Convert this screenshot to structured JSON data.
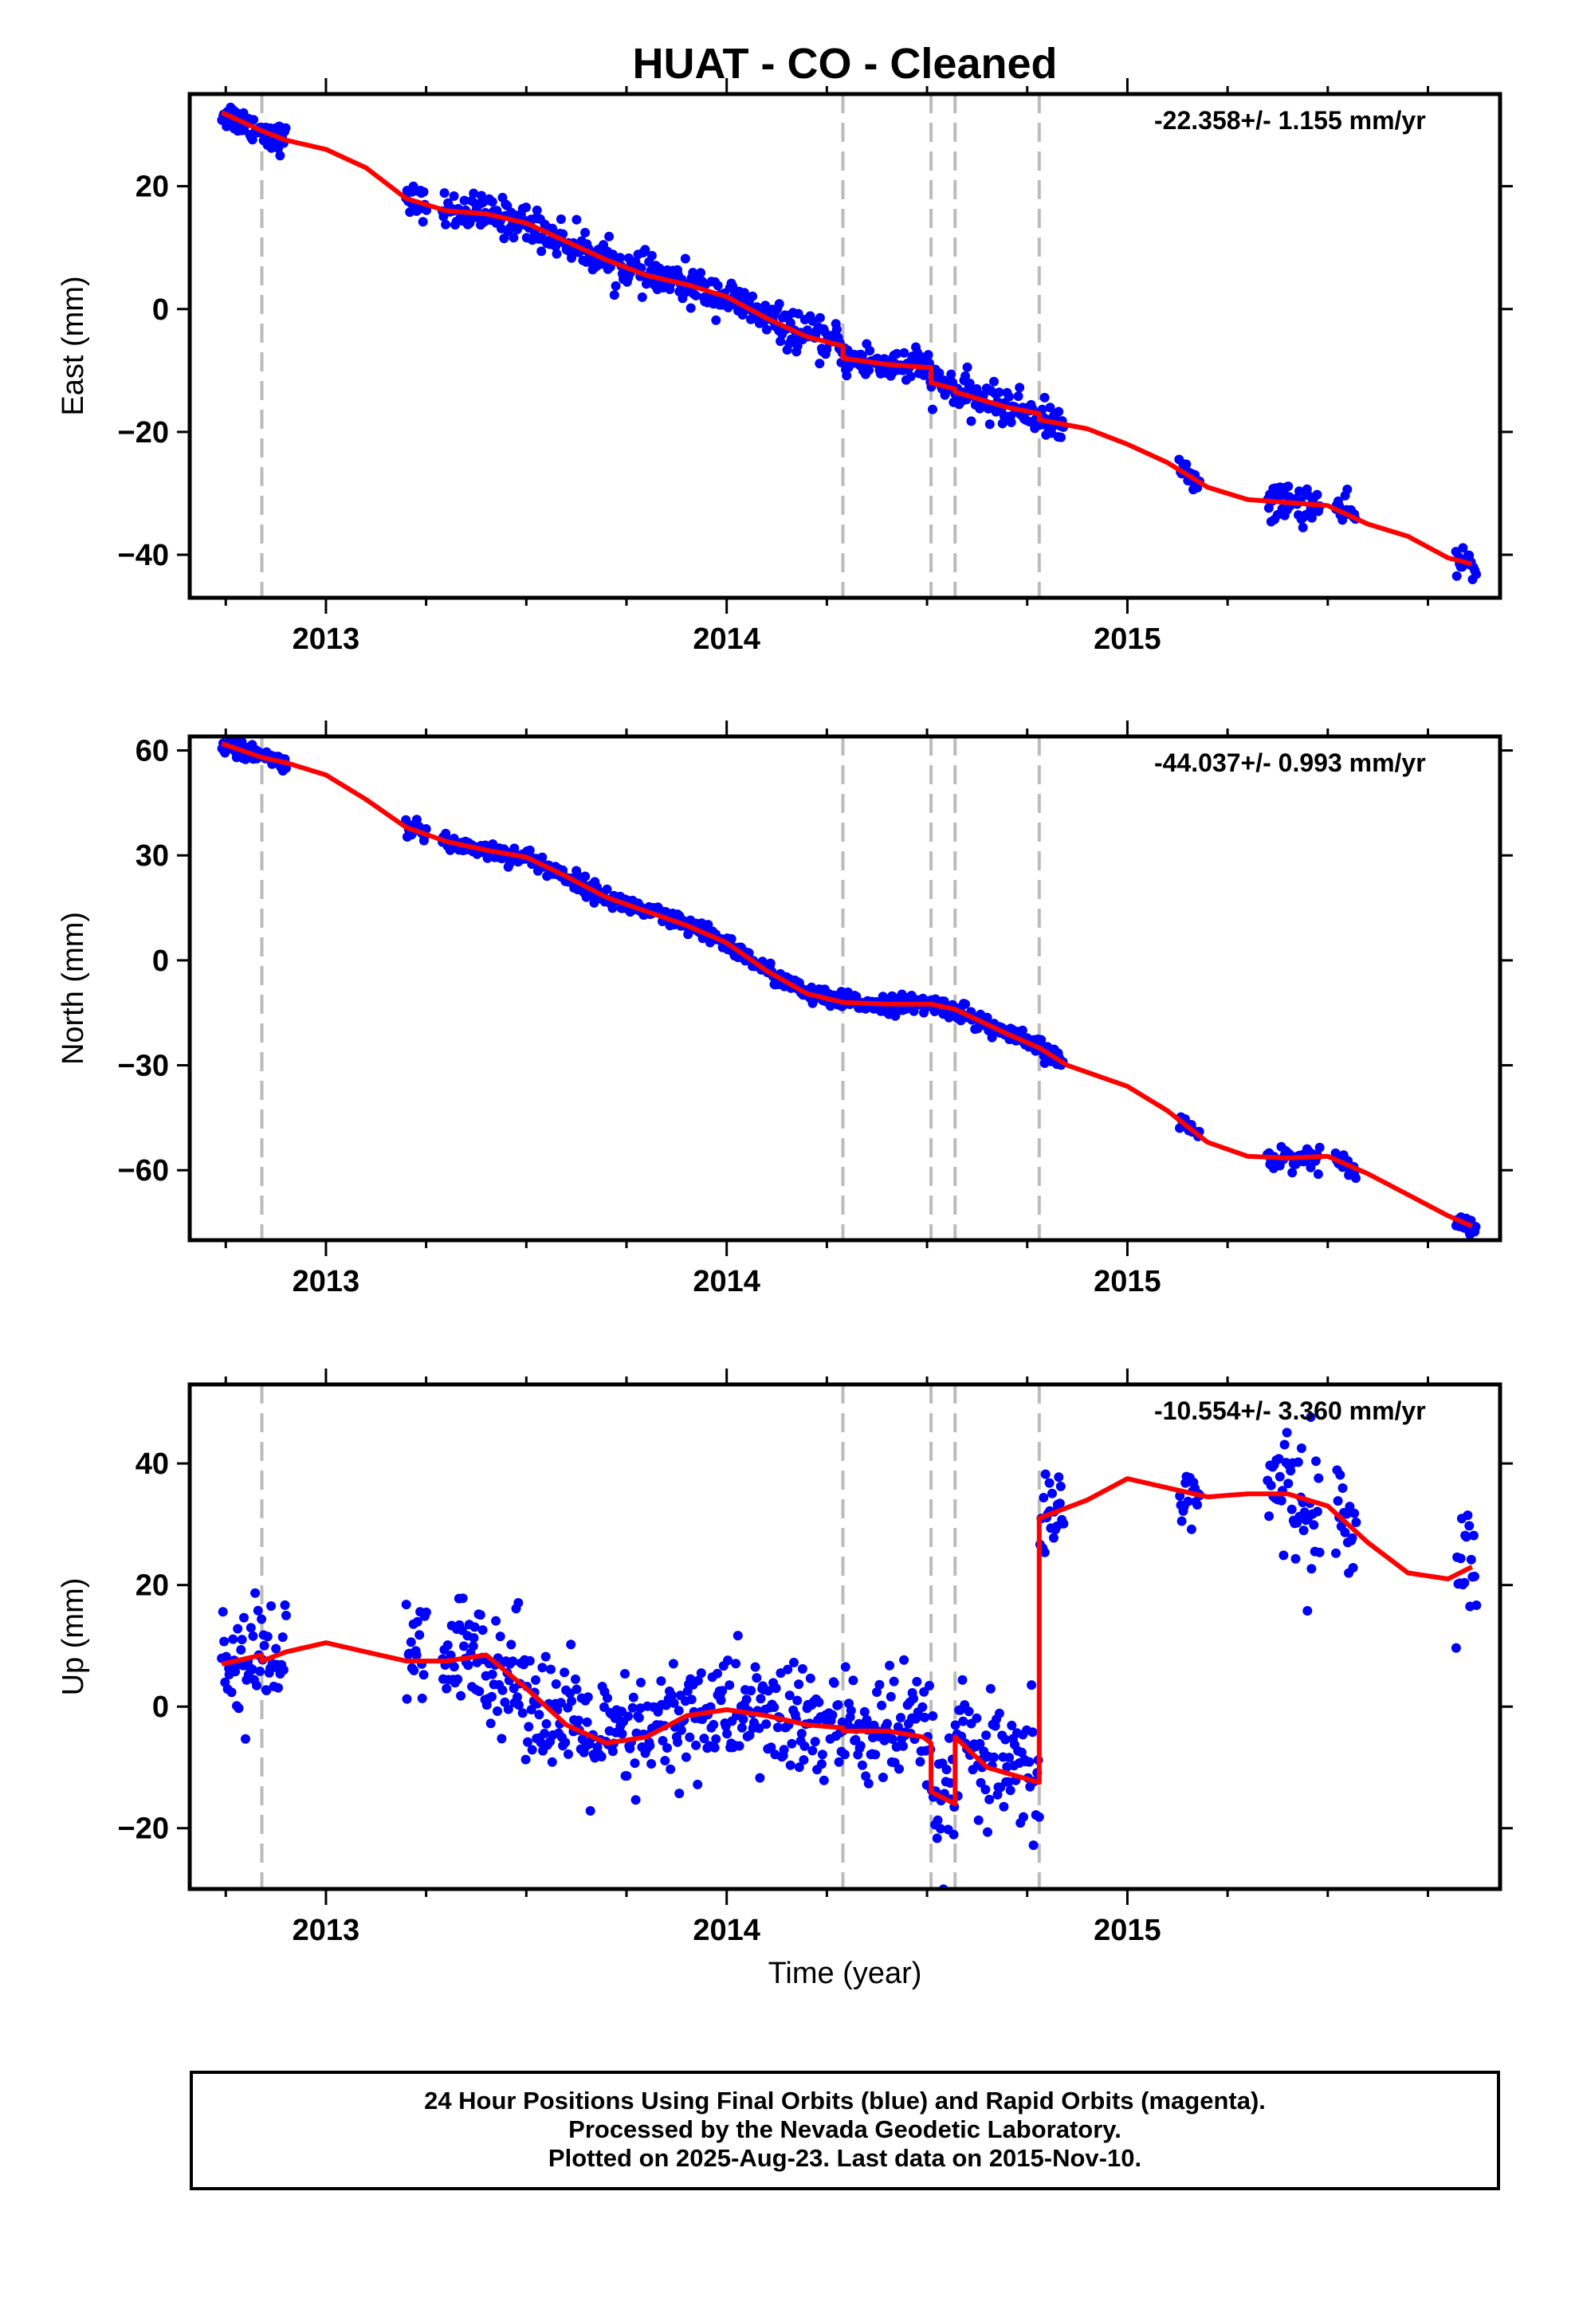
{
  "title": "HUAT  - CO - Cleaned",
  "xlabel": "Time (year)",
  "footer": [
    "24 Hour Positions Using Final Orbits (blue) and Rapid Orbits (magenta).",
    "Processed by the Nevada Geodetic Laboratory.",
    "Plotted on 2025-Aug-23. Last data on 2015-Nov-10."
  ],
  "colors": {
    "final_orbits": "#0000ff",
    "model": "#ff0000",
    "event_lines": "#bbbbbb",
    "axes": "#000000"
  },
  "chart_data": [
    {
      "type": "scatter",
      "ylabel": "East (mm)",
      "rate_label": "-22.358+/- 1.155 mm/yr",
      "xlim": [
        2012.66,
        2015.93
      ],
      "ylim": [
        -47,
        35
      ],
      "yticks": [
        20,
        0,
        -20,
        -40
      ],
      "xticks": [
        2013,
        2014,
        2015
      ],
      "event_lines": [
        2012.84,
        2014.29,
        2014.51,
        2014.57,
        2014.78
      ],
      "data_clusters": [
        {
          "x_start": 2012.74,
          "x_end": 2012.9,
          "noise": 1.2
        },
        {
          "x_start": 2013.2,
          "x_end": 2013.25,
          "noise": 1.3
        },
        {
          "x_start": 2013.29,
          "x_end": 2014.84,
          "noise": 1.5
        },
        {
          "x_start": 2015.13,
          "x_end": 2015.18,
          "noise": 1.0
        },
        {
          "x_start": 2015.35,
          "x_end": 2015.48,
          "noise": 1.6
        },
        {
          "x_start": 2015.52,
          "x_end": 2015.57,
          "noise": 1.3
        },
        {
          "x_start": 2015.82,
          "x_end": 2015.87,
          "noise": 1.5
        }
      ],
      "series": [
        {
          "points": [
            [
              2012.74,
              32
            ],
            [
              2012.84,
              29
            ],
            [
              2012.9,
              27.5
            ],
            [
              2013.0,
              26
            ],
            [
              2013.1,
              23
            ],
            [
              2013.2,
              18
            ],
            [
              2013.3,
              16
            ],
            [
              2013.4,
              15.5
            ],
            [
              2013.5,
              14
            ],
            [
              2013.6,
              11
            ],
            [
              2013.7,
              8
            ],
            [
              2013.8,
              5.5
            ],
            [
              2013.9,
              4
            ],
            [
              2014.0,
              2
            ],
            [
              2014.1,
              -1.5
            ],
            [
              2014.2,
              -4.5
            ],
            [
              2014.29,
              -6
            ],
            [
              2014.29,
              -8
            ],
            [
              2014.4,
              -9
            ],
            [
              2014.5,
              -9.5
            ],
            [
              2014.51,
              -9.5
            ],
            [
              2014.51,
              -12
            ],
            [
              2014.57,
              -13
            ],
            [
              2014.57,
              -13.5
            ],
            [
              2014.7,
              -16
            ],
            [
              2014.78,
              -17
            ],
            [
              2014.78,
              -18
            ],
            [
              2014.9,
              -19.5
            ],
            [
              2015.0,
              -22
            ],
            [
              2015.1,
              -25
            ],
            [
              2015.2,
              -29
            ],
            [
              2015.3,
              -31
            ],
            [
              2015.4,
              -31.5
            ],
            [
              2015.5,
              -32
            ],
            [
              2015.6,
              -35
            ],
            [
              2015.7,
              -37
            ],
            [
              2015.8,
              -40.5
            ],
            [
              2015.86,
              -41.5
            ]
          ]
        }
      ]
    },
    {
      "type": "scatter",
      "ylabel": "North (mm)",
      "rate_label": "-44.037+/- 0.993 mm/yr",
      "xlim": [
        2012.66,
        2015.93
      ],
      "ylim": [
        -80,
        64
      ],
      "yticks": [
        60,
        30,
        0,
        -30,
        -60
      ],
      "xticks": [
        2013,
        2014,
        2015
      ],
      "event_lines": [
        2012.84,
        2014.29,
        2014.51,
        2014.57,
        2014.78
      ],
      "data_clusters": [
        {
          "x_start": 2012.74,
          "x_end": 2012.9,
          "noise": 1.2
        },
        {
          "x_start": 2013.2,
          "x_end": 2013.25,
          "noise": 1.3
        },
        {
          "x_start": 2013.29,
          "x_end": 2014.84,
          "noise": 1.3
        },
        {
          "x_start": 2015.13,
          "x_end": 2015.18,
          "noise": 1.0
        },
        {
          "x_start": 2015.35,
          "x_end": 2015.48,
          "noise": 1.5
        },
        {
          "x_start": 2015.52,
          "x_end": 2015.57,
          "noise": 1.3
        },
        {
          "x_start": 2015.82,
          "x_end": 2015.87,
          "noise": 1.3
        }
      ],
      "series": [
        {
          "points": [
            [
              2012.74,
              62
            ],
            [
              2012.84,
              58
            ],
            [
              2012.9,
              56.5
            ],
            [
              2013.0,
              53
            ],
            [
              2013.1,
              46
            ],
            [
              2013.2,
              38
            ],
            [
              2013.3,
              34
            ],
            [
              2013.4,
              31.5
            ],
            [
              2013.5,
              29.5
            ],
            [
              2013.6,
              24
            ],
            [
              2013.7,
              18
            ],
            [
              2013.8,
              14
            ],
            [
              2013.9,
              10
            ],
            [
              2014.0,
              5
            ],
            [
              2014.1,
              -3
            ],
            [
              2014.2,
              -9.5
            ],
            [
              2014.29,
              -12
            ],
            [
              2014.4,
              -12.5
            ],
            [
              2014.51,
              -12.5
            ],
            [
              2014.57,
              -14
            ],
            [
              2014.7,
              -21
            ],
            [
              2014.78,
              -25
            ],
            [
              2014.85,
              -30
            ],
            [
              2015.0,
              -36
            ],
            [
              2015.1,
              -43
            ],
            [
              2015.2,
              -52
            ],
            [
              2015.3,
              -56
            ],
            [
              2015.4,
              -56.5
            ],
            [
              2015.5,
              -56
            ],
            [
              2015.6,
              -61
            ],
            [
              2015.7,
              -67
            ],
            [
              2015.8,
              -73
            ],
            [
              2015.86,
              -76
            ]
          ]
        }
      ]
    },
    {
      "type": "scatter",
      "ylabel": "Up (mm)",
      "rate_label": "-10.554+/- 3.360 mm/yr",
      "xlim": [
        2012.66,
        2015.93
      ],
      "ylim": [
        -30,
        53
      ],
      "yticks": [
        40,
        20,
        0,
        -20
      ],
      "xticks": [
        2013,
        2014,
        2015
      ],
      "event_lines": [
        2012.84,
        2014.29,
        2014.51,
        2014.57,
        2014.78
      ],
      "data_clusters": [
        {
          "x_start": 2012.74,
          "x_end": 2012.9,
          "noise": 4.5
        },
        {
          "x_start": 2013.2,
          "x_end": 2013.25,
          "noise": 5.0
        },
        {
          "x_start": 2013.29,
          "x_end": 2014.84,
          "noise": 5.0
        },
        {
          "x_start": 2015.13,
          "x_end": 2015.18,
          "noise": 3.5
        },
        {
          "x_start": 2015.35,
          "x_end": 2015.48,
          "noise": 5.5
        },
        {
          "x_start": 2015.52,
          "x_end": 2015.57,
          "noise": 4.0
        },
        {
          "x_start": 2015.82,
          "x_end": 2015.87,
          "noise": 5.0
        }
      ],
      "series": [
        {
          "points": [
            [
              2012.74,
              7
            ],
            [
              2012.84,
              8.5
            ],
            [
              2012.84,
              7.5
            ],
            [
              2012.9,
              9
            ],
            [
              2013.0,
              10.5
            ],
            [
              2013.1,
              9
            ],
            [
              2013.2,
              7.5
            ],
            [
              2013.3,
              7.5
            ],
            [
              2013.4,
              8.5
            ],
            [
              2013.5,
              3
            ],
            [
              2013.6,
              -3
            ],
            [
              2013.7,
              -6
            ],
            [
              2013.8,
              -5
            ],
            [
              2013.9,
              -1.5
            ],
            [
              2014.0,
              -0.5
            ],
            [
              2014.1,
              -1.5
            ],
            [
              2014.2,
              -3
            ],
            [
              2014.29,
              -3.5
            ],
            [
              2014.29,
              -4
            ],
            [
              2014.4,
              -4
            ],
            [
              2014.49,
              -5
            ],
            [
              2014.51,
              -6
            ],
            [
              2014.51,
              -14
            ],
            [
              2014.57,
              -16
            ],
            [
              2014.57,
              -5
            ],
            [
              2014.65,
              -10
            ],
            [
              2014.78,
              -12.5
            ],
            [
              2014.78,
              31
            ],
            [
              2014.9,
              34
            ],
            [
              2015.0,
              37.5
            ],
            [
              2015.1,
              36
            ],
            [
              2015.2,
              34.5
            ],
            [
              2015.3,
              35
            ],
            [
              2015.4,
              35
            ],
            [
              2015.5,
              33
            ],
            [
              2015.6,
              27
            ],
            [
              2015.7,
              22
            ],
            [
              2015.8,
              21
            ],
            [
              2015.86,
              23
            ]
          ]
        }
      ]
    }
  ]
}
